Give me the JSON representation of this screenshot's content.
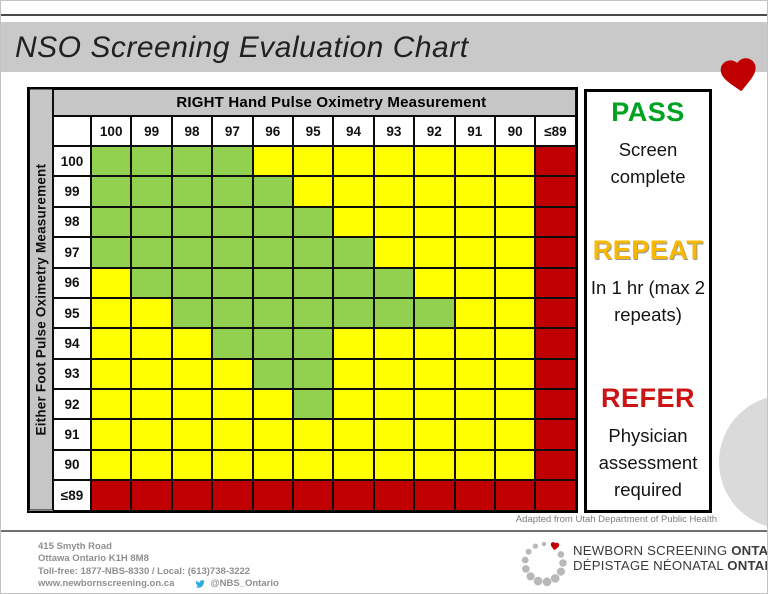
{
  "title_bar": {
    "title": "NSO Screening Evaluation Chart"
  },
  "decorations": {
    "heart_color": "#C00000",
    "circle_color": "#DADADA"
  },
  "chart_data": {
    "type": "heatmap",
    "title": "RIGHT Hand Pulse Oximetry Measurement",
    "row_axis_label": "Either Foot Pulse Oximetry Measurement",
    "columns": [
      "100",
      "99",
      "98",
      "97",
      "96",
      "95",
      "94",
      "93",
      "92",
      "91",
      "90",
      "≤89"
    ],
    "rows": [
      {
        "label": "100",
        "cells": [
          "G",
          "G",
          "G",
          "G",
          "Y",
          "Y",
          "Y",
          "Y",
          "Y",
          "Y",
          "Y",
          "R"
        ]
      },
      {
        "label": "99",
        "cells": [
          "G",
          "G",
          "G",
          "G",
          "G",
          "Y",
          "Y",
          "Y",
          "Y",
          "Y",
          "Y",
          "R"
        ]
      },
      {
        "label": "98",
        "cells": [
          "G",
          "G",
          "G",
          "G",
          "G",
          "G",
          "Y",
          "Y",
          "Y",
          "Y",
          "Y",
          "R"
        ]
      },
      {
        "label": "97",
        "cells": [
          "G",
          "G",
          "G",
          "G",
          "G",
          "G",
          "G",
          "Y",
          "Y",
          "Y",
          "Y",
          "R"
        ]
      },
      {
        "label": "96",
        "cells": [
          "Y",
          "G",
          "G",
          "G",
          "G",
          "G",
          "G",
          "G",
          "Y",
          "Y",
          "Y",
          "R"
        ]
      },
      {
        "label": "95",
        "cells": [
          "Y",
          "Y",
          "G",
          "G",
          "G",
          "G",
          "G",
          "G",
          "G",
          "Y",
          "Y",
          "R"
        ]
      },
      {
        "label": "94",
        "cells": [
          "Y",
          "Y",
          "Y",
          "G",
          "G",
          "G",
          "Y",
          "Y",
          "Y",
          "Y",
          "Y",
          "R"
        ]
      },
      {
        "label": "93",
        "cells": [
          "Y",
          "Y",
          "Y",
          "Y",
          "G",
          "G",
          "Y",
          "Y",
          "Y",
          "Y",
          "Y",
          "R"
        ]
      },
      {
        "label": "92",
        "cells": [
          "Y",
          "Y",
          "Y",
          "Y",
          "Y",
          "G",
          "Y",
          "Y",
          "Y",
          "Y",
          "Y",
          "R"
        ]
      },
      {
        "label": "91",
        "cells": [
          "Y",
          "Y",
          "Y",
          "Y",
          "Y",
          "Y",
          "Y",
          "Y",
          "Y",
          "Y",
          "Y",
          "R"
        ]
      },
      {
        "label": "90",
        "cells": [
          "Y",
          "Y",
          "Y",
          "Y",
          "Y",
          "Y",
          "Y",
          "Y",
          "Y",
          "Y",
          "Y",
          "R"
        ]
      },
      {
        "label": "≤89",
        "cells": [
          "R",
          "R",
          "R",
          "R",
          "R",
          "R",
          "R",
          "R",
          "R",
          "R",
          "R",
          "R"
        ]
      }
    ],
    "cell_colors": {
      "G": "#92D050",
      "Y": "#FFFF00",
      "R": "#C00000"
    },
    "legend": [
      {
        "key": "PASS",
        "color": "#00A221",
        "description": "Screen complete"
      },
      {
        "key": "REPEAT",
        "color": "#F8B800",
        "description": "In 1 hr (max 2 repeats)"
      },
      {
        "key": "REFER",
        "color": "#CC1414",
        "description": "Physician assessment required"
      }
    ]
  },
  "caption": "Adapted from Utah Department of Public Health",
  "footer": {
    "address_lines": [
      "415 Smyth Road",
      "Ottawa Ontario K1H 8M8",
      "Toll-free: 1877-NBS-8330 / Local: (613)738-3222"
    ],
    "website": "www.newbornscreening.on.ca",
    "twitter_handle": "@NBS_Ontario",
    "logo": {
      "line1_regular": "NEWBORN SCREENING ",
      "line1_bold": "ONTARIO",
      "line2_regular": "DÉPISTAGE NÉONATAL ",
      "line2_bold": "ONTARIO"
    }
  }
}
